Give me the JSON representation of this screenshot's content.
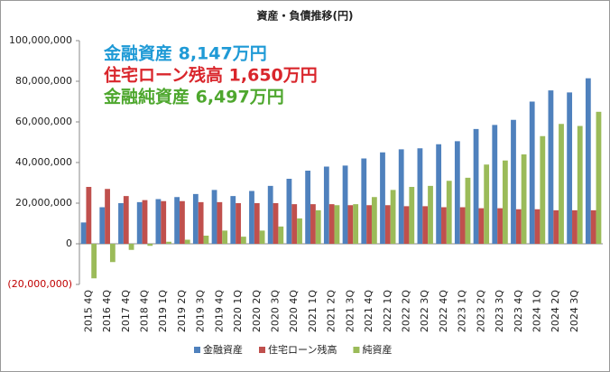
{
  "chart_data": {
    "type": "bar",
    "title": "資産・負債推移(円)",
    "annotations": [
      {
        "text": "金融資産 8,147万円",
        "color": "#1f9ad6"
      },
      {
        "text": "住宅ローン残高 1,650万円",
        "color": "#d9262c"
      },
      {
        "text": "金融純資産 6,497万円",
        "color": "#4ea72e"
      }
    ],
    "categories": [
      "2015 4Q",
      "2016 4Q",
      "2017 4Q",
      "2018 4Q",
      "2019 1Q",
      "2019 2Q",
      "2019 3Q",
      "2019 4Q",
      "2020 1Q",
      "2020 2Q",
      "2020 3Q",
      "2020 4Q",
      "2021 1Q",
      "2021 2Q",
      "2021 3Q",
      "2021 4Q",
      "2022 1Q",
      "2022 2Q",
      "2022 3Q",
      "2022 4Q",
      "2023 1Q",
      "2023 2Q",
      "2023 3Q",
      "2023 4Q",
      "2024 1Q",
      "2024 2Q",
      "2024 3Q",
      null
    ],
    "series": [
      {
        "name": "金融資産",
        "color": "#4f81bd",
        "values": [
          10500000,
          18000000,
          20000000,
          20500000,
          22000000,
          23000000,
          24500000,
          26500000,
          23500000,
          26000000,
          28500000,
          32000000,
          36000000,
          38000000,
          38500000,
          42000000,
          45000000,
          46500000,
          47000000,
          49000000,
          50500000,
          56500000,
          58500000,
          61000000,
          70000000,
          75500000,
          74500000,
          81470000
        ]
      },
      {
        "name": "住宅ローン残高",
        "color": "#c0504d",
        "values": [
          28000000,
          27000000,
          23500000,
          21500000,
          21000000,
          21000000,
          20500000,
          20500000,
          20000000,
          20000000,
          20000000,
          19500000,
          19500000,
          19500000,
          19000000,
          19000000,
          19000000,
          18500000,
          18500000,
          18000000,
          18000000,
          17500000,
          17500000,
          17000000,
          17000000,
          16500000,
          16500000,
          16500000
        ]
      },
      {
        "name": "純資産",
        "color": "#9bbb59",
        "values": [
          -17000000,
          -9000000,
          -3000000,
          -1000000,
          1000000,
          2000000,
          4000000,
          6500000,
          3500000,
          6500000,
          8500000,
          12500000,
          16500000,
          19000000,
          19500000,
          23000000,
          26500000,
          28000000,
          28500000,
          31000000,
          32500000,
          39000000,
          41000000,
          44000000,
          53000000,
          59000000,
          58000000,
          64970000
        ]
      }
    ],
    "ylim": [
      -20000000,
      100000000
    ],
    "yticks": [
      {
        "value": -20000000,
        "label": "(20,000,000)"
      },
      0,
      {
        "value": 20000000,
        "label": "20,000,000"
      },
      {
        "value": 40000000,
        "label": "40,000,000"
      },
      {
        "value": 60000000,
        "label": "60,000,000"
      },
      {
        "value": 80000000,
        "label": "80,000,000"
      },
      {
        "value": 100000000,
        "label": "100,000,000"
      }
    ],
    "negative_tick_color": "#c00000",
    "legend": "bottom"
  }
}
